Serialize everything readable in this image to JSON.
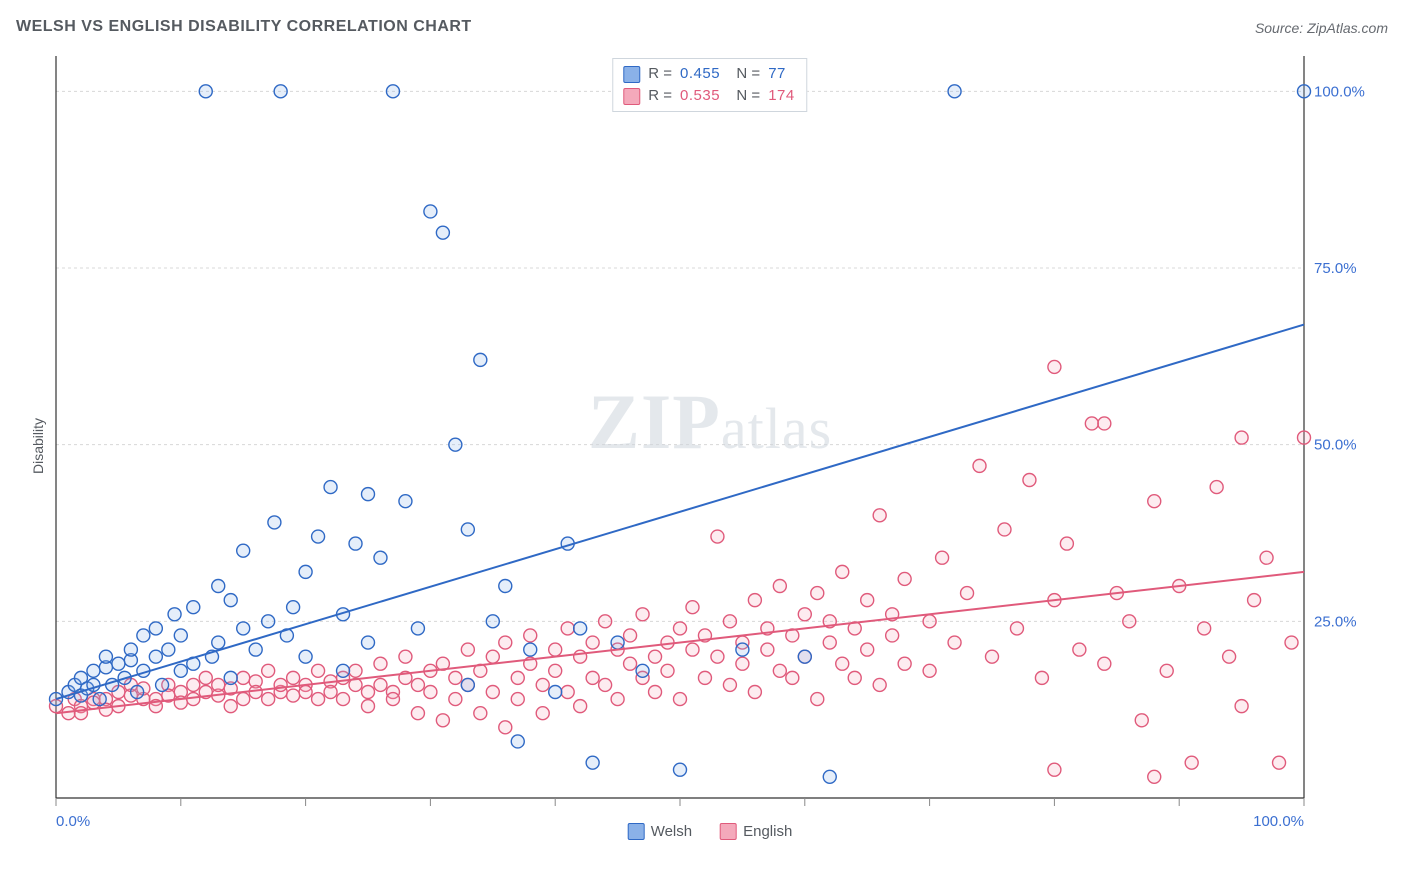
{
  "title": "WELSH VS ENGLISH DISABILITY CORRELATION CHART",
  "source": "Source: ZipAtlas.com",
  "ylabel": "Disability",
  "watermark": {
    "z": "Z",
    "ip": "IP",
    "atlas": "atlas"
  },
  "chart": {
    "type": "scatter-with-regression",
    "background_color": "#ffffff",
    "axis_color": "#333333",
    "grid_color": "#d8d8d8",
    "grid_dash": "3,3",
    "tick_color": "#888888",
    "tick_length": 8,
    "xlim": [
      0,
      100
    ],
    "ylim": [
      0,
      105
    ],
    "x_ticks": [
      0,
      10,
      20,
      30,
      40,
      50,
      60,
      70,
      80,
      90,
      100
    ],
    "y_gridlines": [
      0,
      25,
      50,
      75,
      100
    ],
    "x_tick_labels": {
      "0": "0.0%",
      "100": "100.0%"
    },
    "y_tick_labels": {
      "25": "25.0%",
      "50": "50.0%",
      "75": "75.0%",
      "100": "100.0%"
    },
    "tick_label_color": "#3b6fd1",
    "tick_label_fontsize": 15,
    "marker_radius": 6.5,
    "marker_stroke_width": 1.4,
    "marker_fill_opacity": 0.22,
    "series": [
      {
        "name": "Welsh",
        "stroke": "#2f69c5",
        "fill": "#8ab1e8",
        "R": "0.455",
        "N": "77",
        "regression": {
          "x1": 0,
          "y1": 14,
          "x2": 100,
          "y2": 67,
          "width": 2
        },
        "points": [
          [
            0,
            14
          ],
          [
            1,
            15
          ],
          [
            1.5,
            16
          ],
          [
            2,
            14.5
          ],
          [
            2,
            17
          ],
          [
            2.5,
            15.5
          ],
          [
            3,
            16
          ],
          [
            3,
            18
          ],
          [
            3.5,
            14
          ],
          [
            4,
            18.5
          ],
          [
            4,
            20
          ],
          [
            4.5,
            16
          ],
          [
            5,
            19
          ],
          [
            5.5,
            17
          ],
          [
            6,
            19.5
          ],
          [
            6,
            21
          ],
          [
            6.5,
            15
          ],
          [
            7,
            23
          ],
          [
            7,
            18
          ],
          [
            8,
            20
          ],
          [
            8,
            24
          ],
          [
            8.5,
            16
          ],
          [
            9,
            21
          ],
          [
            9.5,
            26
          ],
          [
            10,
            18
          ],
          [
            10,
            23
          ],
          [
            11,
            19
          ],
          [
            11,
            27
          ],
          [
            12,
            100
          ],
          [
            12.5,
            20
          ],
          [
            13,
            22
          ],
          [
            13,
            30
          ],
          [
            14,
            17
          ],
          [
            14,
            28
          ],
          [
            15,
            24
          ],
          [
            15,
            35
          ],
          [
            16,
            21
          ],
          [
            17,
            25
          ],
          [
            17.5,
            39
          ],
          [
            18,
            100
          ],
          [
            18.5,
            23
          ],
          [
            19,
            27
          ],
          [
            20,
            32
          ],
          [
            20,
            20
          ],
          [
            21,
            37
          ],
          [
            22,
            44
          ],
          [
            23,
            26
          ],
          [
            23,
            18
          ],
          [
            24,
            36
          ],
          [
            25,
            43
          ],
          [
            25,
            22
          ],
          [
            26,
            34
          ],
          [
            27,
            100
          ],
          [
            28,
            42
          ],
          [
            29,
            24
          ],
          [
            30,
            83
          ],
          [
            31,
            80
          ],
          [
            32,
            50
          ],
          [
            33,
            38
          ],
          [
            33,
            16
          ],
          [
            34,
            62
          ],
          [
            35,
            25
          ],
          [
            36,
            30
          ],
          [
            37,
            8
          ],
          [
            38,
            21
          ],
          [
            40,
            15
          ],
          [
            41,
            36
          ],
          [
            42,
            24
          ],
          [
            43,
            5
          ],
          [
            45,
            22
          ],
          [
            47,
            18
          ],
          [
            50,
            4
          ],
          [
            55,
            21
          ],
          [
            62,
            3
          ],
          [
            72,
            100
          ],
          [
            100,
            100
          ],
          [
            60,
            20
          ]
        ]
      },
      {
        "name": "English",
        "stroke": "#e05a7b",
        "fill": "#f4a9bb",
        "R": "0.535",
        "N": "174",
        "regression": {
          "x1": 0,
          "y1": 12,
          "x2": 100,
          "y2": 32,
          "width": 2
        },
        "points": [
          [
            0,
            13
          ],
          [
            1,
            12
          ],
          [
            1.5,
            14
          ],
          [
            2,
            13
          ],
          [
            2,
            12
          ],
          [
            3,
            14
          ],
          [
            3,
            13.5
          ],
          [
            4,
            14
          ],
          [
            4,
            12.5
          ],
          [
            5,
            15
          ],
          [
            5,
            13
          ],
          [
            6,
            14.5
          ],
          [
            6,
            16
          ],
          [
            7,
            14
          ],
          [
            7,
            15.5
          ],
          [
            8,
            14
          ],
          [
            8,
            13
          ],
          [
            9,
            16
          ],
          [
            9,
            14.5
          ],
          [
            10,
            15
          ],
          [
            10,
            13.5
          ],
          [
            11,
            16
          ],
          [
            11,
            14
          ],
          [
            12,
            15
          ],
          [
            12,
            17
          ],
          [
            13,
            14.5
          ],
          [
            13,
            16
          ],
          [
            14,
            15.5
          ],
          [
            14,
            13
          ],
          [
            15,
            17
          ],
          [
            15,
            14
          ],
          [
            16,
            16.5
          ],
          [
            16,
            15
          ],
          [
            17,
            14
          ],
          [
            17,
            18
          ],
          [
            18,
            15
          ],
          [
            18,
            16
          ],
          [
            19,
            14.5
          ],
          [
            19,
            17
          ],
          [
            20,
            16
          ],
          [
            20,
            15
          ],
          [
            21,
            14
          ],
          [
            21,
            18
          ],
          [
            22,
            16.5
          ],
          [
            22,
            15
          ],
          [
            23,
            17
          ],
          [
            23,
            14
          ],
          [
            24,
            16
          ],
          [
            24,
            18
          ],
          [
            25,
            15
          ],
          [
            25,
            13
          ],
          [
            26,
            19
          ],
          [
            26,
            16
          ],
          [
            27,
            15
          ],
          [
            27,
            14
          ],
          [
            28,
            17
          ],
          [
            28,
            20
          ],
          [
            29,
            16
          ],
          [
            29,
            12
          ],
          [
            30,
            18
          ],
          [
            30,
            15
          ],
          [
            31,
            11
          ],
          [
            31,
            19
          ],
          [
            32,
            17
          ],
          [
            32,
            14
          ],
          [
            33,
            21
          ],
          [
            33,
            16
          ],
          [
            34,
            12
          ],
          [
            34,
            18
          ],
          [
            35,
            20
          ],
          [
            35,
            15
          ],
          [
            36,
            10
          ],
          [
            36,
            22
          ],
          [
            37,
            17
          ],
          [
            37,
            14
          ],
          [
            38,
            19
          ],
          [
            38,
            23
          ],
          [
            39,
            16
          ],
          [
            39,
            12
          ],
          [
            40,
            21
          ],
          [
            40,
            18
          ],
          [
            41,
            15
          ],
          [
            41,
            24
          ],
          [
            42,
            20
          ],
          [
            42,
            13
          ],
          [
            43,
            17
          ],
          [
            43,
            22
          ],
          [
            44,
            25
          ],
          [
            44,
            16
          ],
          [
            45,
            14
          ],
          [
            45,
            21
          ],
          [
            46,
            19
          ],
          [
            46,
            23
          ],
          [
            47,
            17
          ],
          [
            47,
            26
          ],
          [
            48,
            15
          ],
          [
            48,
            20
          ],
          [
            49,
            22
          ],
          [
            49,
            18
          ],
          [
            50,
            24
          ],
          [
            50,
            14
          ],
          [
            51,
            21
          ],
          [
            51,
            27
          ],
          [
            52,
            17
          ],
          [
            52,
            23
          ],
          [
            53,
            20
          ],
          [
            53,
            37
          ],
          [
            54,
            16
          ],
          [
            54,
            25
          ],
          [
            55,
            22
          ],
          [
            55,
            19
          ],
          [
            56,
            28
          ],
          [
            56,
            15
          ],
          [
            57,
            24
          ],
          [
            57,
            21
          ],
          [
            58,
            18
          ],
          [
            58,
            30
          ],
          [
            59,
            23
          ],
          [
            59,
            17
          ],
          [
            60,
            26
          ],
          [
            60,
            20
          ],
          [
            61,
            14
          ],
          [
            61,
            29
          ],
          [
            62,
            25
          ],
          [
            62,
            22
          ],
          [
            63,
            19
          ],
          [
            63,
            32
          ],
          [
            64,
            24
          ],
          [
            64,
            17
          ],
          [
            65,
            28
          ],
          [
            65,
            21
          ],
          [
            66,
            40
          ],
          [
            66,
            16
          ],
          [
            67,
            26
          ],
          [
            67,
            23
          ],
          [
            68,
            31
          ],
          [
            68,
            19
          ],
          [
            70,
            25
          ],
          [
            70,
            18
          ],
          [
            71,
            34
          ],
          [
            72,
            22
          ],
          [
            73,
            29
          ],
          [
            74,
            47
          ],
          [
            75,
            20
          ],
          [
            76,
            38
          ],
          [
            77,
            24
          ],
          [
            78,
            45
          ],
          [
            79,
            17
          ],
          [
            80,
            61
          ],
          [
            80,
            28
          ],
          [
            81,
            36
          ],
          [
            82,
            21
          ],
          [
            83,
            53
          ],
          [
            84,
            19
          ],
          [
            84,
            53
          ],
          [
            85,
            29
          ],
          [
            86,
            25
          ],
          [
            87,
            11
          ],
          [
            88,
            42
          ],
          [
            89,
            18
          ],
          [
            90,
            30
          ],
          [
            91,
            5
          ],
          [
            92,
            24
          ],
          [
            93,
            44
          ],
          [
            94,
            20
          ],
          [
            95,
            51
          ],
          [
            95,
            13
          ],
          [
            96,
            28
          ],
          [
            97,
            34
          ],
          [
            98,
            5
          ],
          [
            99,
            22
          ],
          [
            100,
            51
          ],
          [
            80,
            4
          ],
          [
            88,
            3
          ]
        ]
      }
    ]
  },
  "bottom_legend": {
    "items": [
      "Welsh",
      "English"
    ]
  }
}
